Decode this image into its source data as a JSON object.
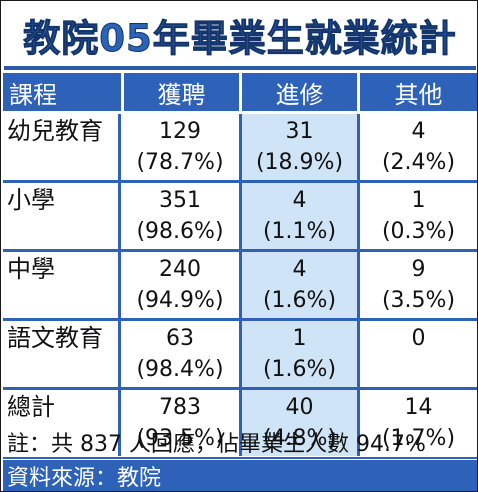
{
  "title": "教院05年畢業生就業統計",
  "columns": [
    "課程",
    "獲聘",
    "進修",
    "其他"
  ],
  "rows": [
    {
      "course": "幼兒教育",
      "employed": "129",
      "employed_pct": "(78.7%)",
      "study": "31",
      "study_pct": "(18.9%)",
      "other": "4",
      "other_pct": "(2.4%)"
    },
    {
      "course": "小學",
      "employed": "351",
      "employed_pct": "(98.6%)",
      "study": "4",
      "study_pct": "(1.1%)",
      "other": "1",
      "other_pct": "(0.3%)"
    },
    {
      "course": "中學",
      "employed": "240",
      "employed_pct": "(94.9%)",
      "study": "4",
      "study_pct": "(1.6%)",
      "other": "9",
      "other_pct": "(3.5%)"
    },
    {
      "course": "語文教育",
      "employed": "63",
      "employed_pct": "(98.4%)",
      "study": "1",
      "study_pct": "(1.6%)",
      "other": "0",
      "other_pct": ""
    },
    {
      "course": "總計",
      "employed": "783",
      "employed_pct": "(93.5%)",
      "study": "40",
      "study_pct": "(4.8%)",
      "other": "14",
      "other_pct": "(1.7%)"
    }
  ],
  "note": "註：共 837 人回應，佔畢業生人數 94.7%",
  "source": "資料來源：教院",
  "colors": {
    "header_blue": "#2e62b8",
    "shade_blue": "#cfe4f6",
    "title_blue": "#2a63b8"
  }
}
